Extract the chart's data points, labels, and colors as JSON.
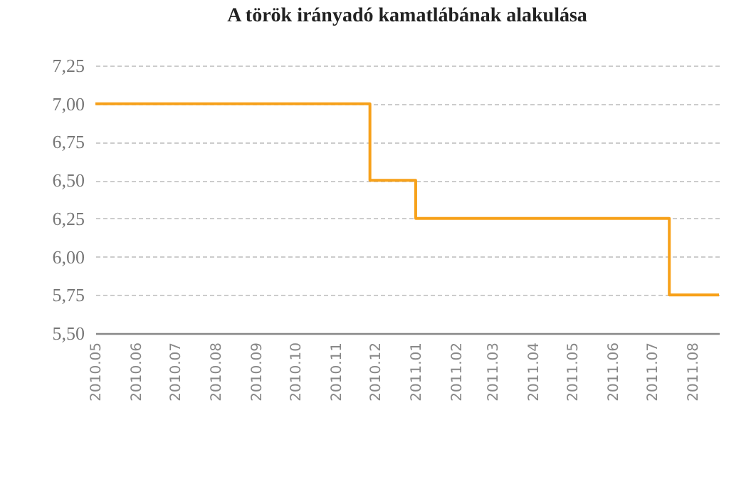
{
  "chart_data": {
    "type": "step",
    "title": "A török irányadó kamatlábának alakulása",
    "x": [
      "2010-05-01",
      "2010-11-27",
      "2011-01-01",
      "2011-07-14",
      "2011-08-21"
    ],
    "series": [
      {
        "color": "#f7a11a",
        "values": [
          7.0,
          6.5,
          6.25,
          5.75,
          5.75
        ]
      }
    ],
    "xlim": [
      "2010-05-01",
      "2011-08-21"
    ],
    "xticks": [
      {
        "value": "2010-05",
        "label": "2010.05"
      },
      {
        "value": "2010-06",
        "label": "2010.06"
      },
      {
        "value": "2010-07",
        "label": "2010.07"
      },
      {
        "value": "2010-08",
        "label": "2010.08"
      },
      {
        "value": "2010-09",
        "label": "2010.09"
      },
      {
        "value": "2010-10",
        "label": "2010.10"
      },
      {
        "value": "2010-11",
        "label": "2010.11"
      },
      {
        "value": "2010-12",
        "label": "2010.12"
      },
      {
        "value": "2011-01",
        "label": "2011.01"
      },
      {
        "value": "2011-02",
        "label": "2011.02"
      },
      {
        "value": "2011-03",
        "label": "2011.03"
      },
      {
        "value": "2011-04",
        "label": "2011.04"
      },
      {
        "value": "2011-05",
        "label": "2011.05"
      },
      {
        "value": "2011-06",
        "label": "2011.06"
      },
      {
        "value": "2011-07",
        "label": "2011.07"
      },
      {
        "value": "2011-08",
        "label": "2011.08"
      }
    ],
    "ylim": [
      5.5,
      7.25
    ],
    "yticks": [
      {
        "value": 5.5,
        "label": "5,50"
      },
      {
        "value": 5.75,
        "label": "5,75"
      },
      {
        "value": 6.0,
        "label": "6,00"
      },
      {
        "value": 6.25,
        "label": "6,25"
      },
      {
        "value": 6.5,
        "label": "6,50"
      },
      {
        "value": 6.75,
        "label": "6,75"
      },
      {
        "value": 7.0,
        "label": "7,00"
      },
      {
        "value": 7.25,
        "label": "7,25"
      }
    ],
    "grid": "y",
    "marker": "none",
    "line_style": "solid"
  }
}
